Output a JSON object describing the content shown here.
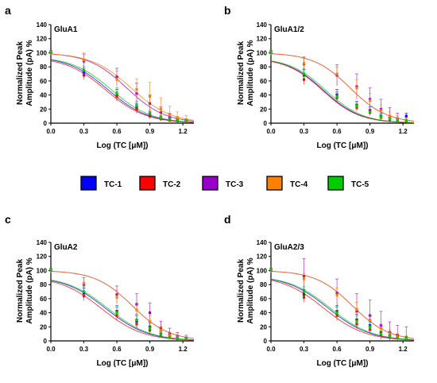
{
  "legend": [
    {
      "name": "TC-1",
      "color": "#0000ff"
    },
    {
      "name": "TC-2",
      "color": "#ff0000"
    },
    {
      "name": "TC-3",
      "color": "#9900cc"
    },
    {
      "name": "TC-4",
      "color": "#ff8000"
    },
    {
      "name": "TC-5",
      "color": "#00cc00"
    }
  ],
  "chart_data": [
    {
      "letter": "a",
      "type": "line",
      "title": "GluA1",
      "xlabel": "Log (TC [μM])",
      "ylabel": "Normalized Peak Amplitude (pA) %",
      "xlim": [
        0,
        1.3
      ],
      "ylim": [
        0,
        140
      ],
      "xticks": [
        "0.0",
        "0.3",
        "0.6",
        "0.9",
        "1.2"
      ],
      "yticks": [
        "0",
        "20",
        "40",
        "60",
        "80",
        "100",
        "120",
        "140"
      ],
      "x": [
        0,
        0.3,
        0.6,
        0.78,
        0.9,
        1.0,
        1.08,
        1.15,
        1.23
      ],
      "series": [
        {
          "name": "TC-1",
          "color": "#0000ff",
          "logIC50": 0.52,
          "hill": 2.4,
          "top": 95,
          "values": [
            100,
            72,
            40,
            22,
            12,
            8,
            5,
            4,
            3
          ],
          "err": [
            3,
            6,
            8,
            6,
            4,
            3,
            2,
            2,
            2
          ]
        },
        {
          "name": "TC-2",
          "color": "#ff0000",
          "logIC50": 0.5,
          "hill": 2.4,
          "top": 94,
          "values": [
            100,
            68,
            38,
            20,
            10,
            6,
            4,
            3,
            2
          ],
          "err": [
            3,
            6,
            7,
            6,
            4,
            3,
            2,
            2,
            2
          ]
        },
        {
          "name": "TC-3",
          "color": "#9900cc",
          "logIC50": 0.69,
          "hill": 2.5,
          "top": 100,
          "values": [
            100,
            88,
            66,
            42,
            28,
            15,
            8,
            5,
            3
          ],
          "err": [
            3,
            10,
            12,
            15,
            12,
            8,
            6,
            4,
            3
          ]
        },
        {
          "name": "TC-4",
          "color": "#ff8000",
          "logIC50": 0.73,
          "hill": 2.4,
          "top": 100,
          "values": [
            100,
            90,
            62,
            48,
            38,
            20,
            12,
            8,
            5
          ],
          "err": [
            3,
            10,
            12,
            15,
            20,
            16,
            12,
            8,
            6
          ]
        },
        {
          "name": "TC-5",
          "color": "#00cc00",
          "logIC50": 0.55,
          "hill": 2.4,
          "top": 95,
          "values": [
            100,
            75,
            42,
            25,
            14,
            8,
            5,
            4,
            3
          ],
          "err": [
            3,
            6,
            8,
            6,
            4,
            3,
            2,
            2,
            2
          ]
        }
      ]
    },
    {
      "letter": "b",
      "type": "line",
      "title": "GluA1/2",
      "xlabel": "Log (TC [μM])",
      "ylabel": "Normalized Peak Amplitude (pA) %",
      "xlim": [
        0,
        1.3
      ],
      "ylim": [
        0,
        140
      ],
      "xticks": [
        "0.0",
        "0.3",
        "0.6",
        "0.9",
        "1.2"
      ],
      "yticks": [
        "0",
        "20",
        "40",
        "60",
        "80",
        "100",
        "120",
        "140"
      ],
      "x": [
        0,
        0.3,
        0.6,
        0.78,
        0.9,
        1.0,
        1.08,
        1.15,
        1.23
      ],
      "series": [
        {
          "name": "TC-1",
          "color": "#0000ff",
          "logIC50": 0.48,
          "hill": 2.6,
          "top": 93,
          "values": [
            100,
            68,
            40,
            25,
            18,
            10,
            6,
            5,
            10
          ],
          "err": [
            3,
            8,
            8,
            6,
            5,
            4,
            3,
            3,
            4
          ]
        },
        {
          "name": "TC-2",
          "color": "#ff0000",
          "logIC50": 0.47,
          "hill": 2.6,
          "top": 93,
          "values": [
            100,
            62,
            36,
            22,
            15,
            8,
            5,
            4,
            3
          ],
          "err": [
            3,
            7,
            7,
            5,
            4,
            3,
            2,
            2,
            2
          ]
        },
        {
          "name": "TC-3",
          "color": "#9900cc",
          "logIC50": 0.72,
          "hill": 2.6,
          "top": 100,
          "values": [
            100,
            84,
            68,
            52,
            34,
            20,
            10,
            6,
            4
          ],
          "err": [
            3,
            10,
            15,
            18,
            16,
            14,
            12,
            8,
            5
          ]
        },
        {
          "name": "TC-4",
          "color": "#ff8000",
          "logIC50": 0.72,
          "hill": 2.6,
          "top": 100,
          "values": [
            100,
            85,
            70,
            50,
            32,
            18,
            10,
            6,
            4
          ],
          "err": [
            3,
            8,
            10,
            12,
            10,
            8,
            6,
            5,
            3
          ]
        },
        {
          "name": "TC-5",
          "color": "#00cc00",
          "logIC50": 0.5,
          "hill": 2.6,
          "top": 93,
          "values": [
            100,
            70,
            38,
            24,
            16,
            9,
            6,
            4,
            3
          ],
          "err": [
            3,
            7,
            7,
            5,
            4,
            3,
            2,
            2,
            2
          ]
        }
      ]
    },
    {
      "letter": "c",
      "type": "line",
      "title": "GluA2",
      "xlabel": "Log (TC [μM])",
      "ylabel": "Normalized Peak Amplitude (pA) %",
      "xlim": [
        0,
        1.3
      ],
      "ylim": [
        0,
        140
      ],
      "xticks": [
        "0.0",
        "0.3",
        "0.6",
        "0.9",
        "1.2"
      ],
      "yticks": [
        "0",
        "20",
        "40",
        "60",
        "80",
        "100",
        "120",
        "140"
      ],
      "x": [
        0,
        0.3,
        0.6,
        0.78,
        0.9,
        1.0,
        1.08,
        1.15,
        1.23
      ],
      "series": [
        {
          "name": "TC-1",
          "color": "#0000ff",
          "logIC50": 0.5,
          "hill": 2.3,
          "top": 92,
          "values": [
            100,
            68,
            42,
            28,
            20,
            10,
            6,
            4,
            3
          ],
          "err": [
            3,
            7,
            8,
            8,
            6,
            4,
            3,
            2,
            2
          ]
        },
        {
          "name": "TC-2",
          "color": "#ff0000",
          "logIC50": 0.46,
          "hill": 2.3,
          "top": 92,
          "values": [
            100,
            64,
            36,
            24,
            15,
            8,
            5,
            3,
            2
          ],
          "err": [
            3,
            7,
            7,
            6,
            5,
            3,
            2,
            2,
            2
          ]
        },
        {
          "name": "TC-3",
          "color": "#9900cc",
          "logIC50": 0.74,
          "hill": 2.6,
          "top": 100,
          "values": [
            100,
            80,
            66,
            52,
            40,
            18,
            10,
            6,
            4
          ],
          "err": [
            3,
            10,
            12,
            15,
            14,
            10,
            8,
            6,
            4
          ]
        },
        {
          "name": "TC-4",
          "color": "#ff8000",
          "logIC50": 0.74,
          "hill": 2.6,
          "top": 100,
          "values": [
            100,
            82,
            62,
            44,
            28,
            15,
            8,
            5,
            3
          ],
          "err": [
            3,
            8,
            10,
            10,
            8,
            6,
            5,
            4,
            3
          ]
        },
        {
          "name": "TC-5",
          "color": "#00cc00",
          "logIC50": 0.52,
          "hill": 2.3,
          "top": 92,
          "values": [
            100,
            70,
            40,
            30,
            18,
            9,
            5,
            4,
            3
          ],
          "err": [
            3,
            7,
            8,
            8,
            6,
            4,
            3,
            2,
            2
          ]
        }
      ]
    },
    {
      "letter": "d",
      "type": "line",
      "title": "GluA2/3",
      "xlabel": "Log (TC [μM])",
      "ylabel": "Normalized Peak Amplitude (pA) %",
      "xlim": [
        0,
        1.3
      ],
      "ylim": [
        0,
        140
      ],
      "xticks": [
        "0.0",
        "0.3",
        "0.6",
        "0.9",
        "1.2"
      ],
      "yticks": [
        "0",
        "20",
        "40",
        "60",
        "80",
        "100",
        "120",
        "140"
      ],
      "x": [
        0,
        0.3,
        0.6,
        0.78,
        0.9,
        1.0,
        1.08,
        1.15,
        1.23
      ],
      "series": [
        {
          "name": "TC-1",
          "color": "#0000ff",
          "logIC50": 0.52,
          "hill": 2.3,
          "top": 93,
          "values": [
            100,
            66,
            42,
            30,
            22,
            12,
            8,
            5,
            3
          ],
          "err": [
            3,
            7,
            8,
            8,
            6,
            5,
            4,
            3,
            2
          ]
        },
        {
          "name": "TC-2",
          "color": "#ff0000",
          "logIC50": 0.48,
          "hill": 2.3,
          "top": 93,
          "values": [
            100,
            62,
            36,
            24,
            16,
            9,
            5,
            4,
            3
          ],
          "err": [
            3,
            7,
            7,
            6,
            5,
            3,
            2,
            2,
            2
          ]
        },
        {
          "name": "TC-3",
          "color": "#9900cc",
          "logIC50": 0.74,
          "hill": 2.6,
          "top": 100,
          "values": [
            100,
            92,
            68,
            42,
            36,
            22,
            12,
            8,
            5
          ],
          "err": [
            3,
            25,
            20,
            25,
            22,
            20,
            15,
            14,
            15
          ]
        },
        {
          "name": "TC-4",
          "color": "#ff8000",
          "logIC50": 0.74,
          "hill": 2.6,
          "top": 100,
          "values": [
            100,
            88,
            65,
            45,
            30,
            18,
            10,
            6,
            4
          ],
          "err": [
            3,
            8,
            10,
            10,
            8,
            6,
            5,
            4,
            3
          ]
        },
        {
          "name": "TC-5",
          "color": "#00cc00",
          "logIC50": 0.54,
          "hill": 2.3,
          "top": 93,
          "values": [
            100,
            70,
            40,
            28,
            20,
            10,
            6,
            4,
            3
          ],
          "err": [
            3,
            7,
            8,
            8,
            6,
            4,
            3,
            2,
            2
          ]
        }
      ]
    }
  ]
}
